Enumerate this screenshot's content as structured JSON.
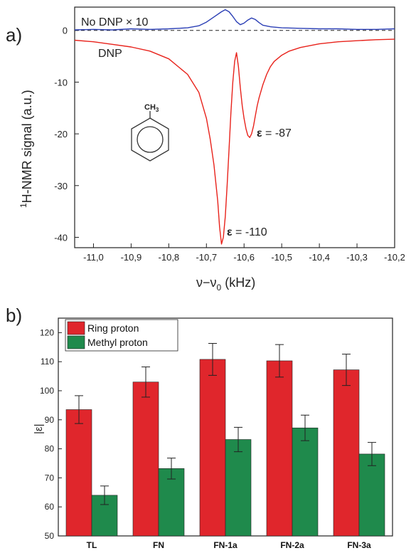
{
  "panels": {
    "a": "a)",
    "b": "b)"
  },
  "chart_data": [
    {
      "type": "line",
      "ylabel_prefix": "1",
      "ylabel": "H-NMR signal (a.u.)",
      "xlabel_main": "ν−ν",
      "xlabel_sub": "0",
      "xlabel_unit": " (kHz)",
      "xlim": [
        -11.05,
        -10.2
      ],
      "ylim": [
        -42,
        4.5
      ],
      "xticks": [
        -11.0,
        -10.9,
        -10.8,
        -10.7,
        -10.6,
        -10.5,
        -10.4,
        -10.3,
        -10.2
      ],
      "xtick_labels": [
        "-11,0",
        "-10,9",
        "-10,8",
        "-10,7",
        "-10,6",
        "-10,5",
        "-10,4",
        "-10,3",
        "-10,2"
      ],
      "yticks": [
        0,
        -10,
        -20,
        -30,
        -40
      ],
      "ytick_labels": [
        "0",
        "-10",
        "-20",
        "-30",
        "-40"
      ],
      "zero_line": "dashed",
      "series": [
        {
          "name": "No DNP × 10",
          "color": "#2b3fb5",
          "x": [
            -11.05,
            -11.0,
            -10.95,
            -10.9,
            -10.85,
            -10.8,
            -10.75,
            -10.72,
            -10.7,
            -10.68,
            -10.66,
            -10.65,
            -10.64,
            -10.63,
            -10.62,
            -10.61,
            -10.6,
            -10.59,
            -10.58,
            -10.57,
            -10.56,
            -10.55,
            -10.53,
            -10.5,
            -10.45,
            -10.4,
            -10.35,
            -10.3,
            -10.25,
            -10.2
          ],
          "y": [
            0.1,
            0.2,
            0.1,
            0.3,
            0.2,
            0.3,
            0.5,
            0.9,
            1.6,
            2.6,
            3.6,
            4.0,
            3.6,
            2.7,
            1.7,
            1.1,
            1.4,
            2.0,
            2.4,
            2.1,
            1.5,
            1.0,
            0.7,
            0.5,
            0.4,
            0.3,
            0.3,
            0.2,
            0.2,
            0.3
          ]
        },
        {
          "name": "DNP",
          "color": "#e8221b",
          "x": [
            -11.05,
            -11.0,
            -10.95,
            -10.9,
            -10.85,
            -10.8,
            -10.75,
            -10.72,
            -10.7,
            -10.69,
            -10.68,
            -10.67,
            -10.665,
            -10.66,
            -10.655,
            -10.65,
            -10.645,
            -10.64,
            -10.635,
            -10.63,
            -10.625,
            -10.62,
            -10.615,
            -10.61,
            -10.605,
            -10.6,
            -10.595,
            -10.59,
            -10.585,
            -10.58,
            -10.575,
            -10.57,
            -10.565,
            -10.56,
            -10.55,
            -10.54,
            -10.53,
            -10.52,
            -10.5,
            -10.48,
            -10.45,
            -10.4,
            -10.35,
            -10.3,
            -10.25,
            -10.2
          ],
          "y": [
            -1.9,
            -2.2,
            -2.7,
            -3.2,
            -4.0,
            -5.5,
            -8.5,
            -12.0,
            -17.0,
            -21.0,
            -26.0,
            -33.0,
            -38.0,
            -41.3,
            -40.0,
            -36.0,
            -30.0,
            -23.0,
            -16.0,
            -10.0,
            -6.0,
            -4.3,
            -7.0,
            -11.0,
            -14.5,
            -17.0,
            -19.0,
            -20.3,
            -20.7,
            -20.0,
            -18.5,
            -16.5,
            -14.5,
            -13.0,
            -10.5,
            -8.5,
            -7.0,
            -6.0,
            -4.8,
            -4.0,
            -3.3,
            -2.6,
            -2.2,
            -2.0,
            -1.8,
            -1.7
          ]
        }
      ],
      "labels": {
        "nodnp": "No DNP × 10",
        "dnp": "DNP",
        "eps_symbol": "ε",
        "eps87": " = -87",
        "eps110": " = -110",
        "ch3": "CH",
        "ch3_sub": "3"
      }
    },
    {
      "type": "bar",
      "ylabel": "|ε|",
      "categories": [
        "TL",
        "FN",
        "FN-1a",
        "FN-2a",
        "FN-3a"
      ],
      "ylim": [
        50,
        125
      ],
      "yticks": [
        50,
        60,
        70,
        80,
        90,
        100,
        110,
        120
      ],
      "legend_position": "top-left",
      "series": [
        {
          "name": "Ring proton",
          "color": "#e0262c",
          "values": [
            93.5,
            103.0,
            110.8,
            110.3,
            107.2
          ],
          "errors": [
            4.8,
            5.2,
            5.5,
            5.6,
            5.4
          ]
        },
        {
          "name": "Methyl proton",
          "color": "#1f8a4c",
          "values": [
            64.0,
            73.2,
            83.2,
            87.2,
            78.2
          ],
          "errors": [
            3.2,
            3.6,
            4.2,
            4.4,
            4.0
          ]
        }
      ]
    }
  ]
}
